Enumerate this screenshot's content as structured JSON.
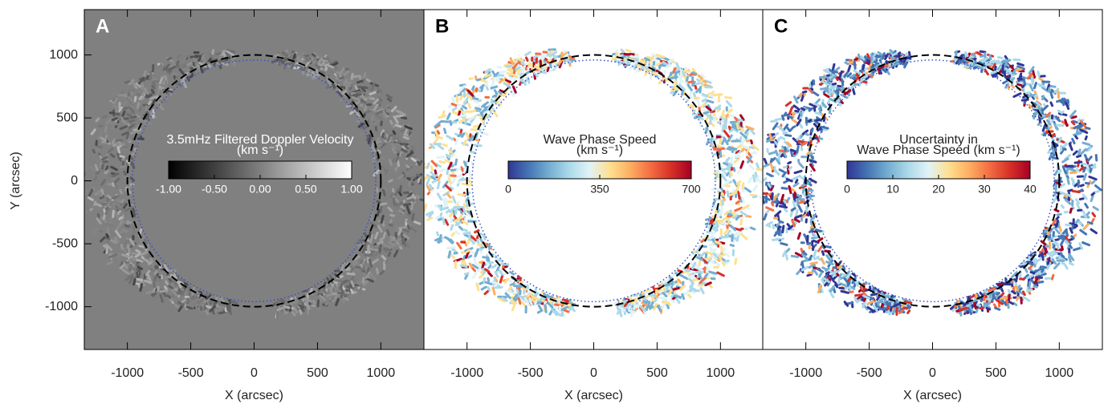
{
  "chart_data": [
    {
      "type": "image-map",
      "panel_label": "A",
      "background": "#808080",
      "xlabel": "X (arcsec)",
      "ylabel": "Y (arcsec)",
      "xlim": [
        -1340,
        1340
      ],
      "ylim": [
        -1340,
        1360
      ],
      "xticks": [
        -1000,
        -500,
        0,
        500,
        1000
      ],
      "yticks": [
        -1000,
        -500,
        0,
        500,
        1000
      ],
      "colorbar": {
        "title": [
          "3.5mHz Filtered Doppler Velocity",
          "(km s⁻¹)"
        ],
        "lim": [
          -1,
          1
        ],
        "ticks": [
          {
            "value": -1,
            "label": "-1.00"
          },
          {
            "value": -0.5,
            "label": "-0.50"
          },
          {
            "value": 0,
            "label": "0.00"
          },
          {
            "value": 0.5,
            "label": "0.50"
          },
          {
            "value": 1,
            "label": "1.00"
          }
        ],
        "colors": [
          "#000000",
          "#ffffff"
        ]
      }
    },
    {
      "type": "image-map",
      "panel_label": "B",
      "background": "#ffffff",
      "xlabel": "X (arcsec)",
      "xlim": [
        -1340,
        1340
      ],
      "ylim": [
        -1340,
        1360
      ],
      "xticks": [
        -1000,
        -500,
        0,
        500,
        1000
      ],
      "colorbar": {
        "title": [
          "Wave Phase Speed",
          "(km s⁻¹)"
        ],
        "lim": [
          0,
          700
        ],
        "ticks": [
          0,
          350,
          700
        ],
        "colors": [
          "#313695",
          "#4575b4",
          "#74add1",
          "#abd9e9",
          "#e0f3f8",
          "#fee090",
          "#fdae61",
          "#f46d43",
          "#d73027",
          "#a50026"
        ]
      }
    },
    {
      "type": "image-map",
      "panel_label": "C",
      "background": "#ffffff",
      "xlabel": "X (arcsec)",
      "xlim": [
        -1340,
        1340
      ],
      "ylim": [
        -1340,
        1360
      ],
      "xticks": [
        -1000,
        -500,
        0,
        500,
        1000
      ],
      "colorbar": {
        "title": [
          "Uncertainty in",
          "Wave Phase Speed (km s⁻¹)"
        ],
        "lim": [
          0,
          40
        ],
        "ticks": [
          0,
          10,
          20,
          30,
          40
        ],
        "colors": [
          "#313695",
          "#4575b4",
          "#74add1",
          "#abd9e9",
          "#e0f3f8",
          "#fee090",
          "#fdae61",
          "#f46d43",
          "#d73027",
          "#a50026"
        ]
      }
    }
  ]
}
